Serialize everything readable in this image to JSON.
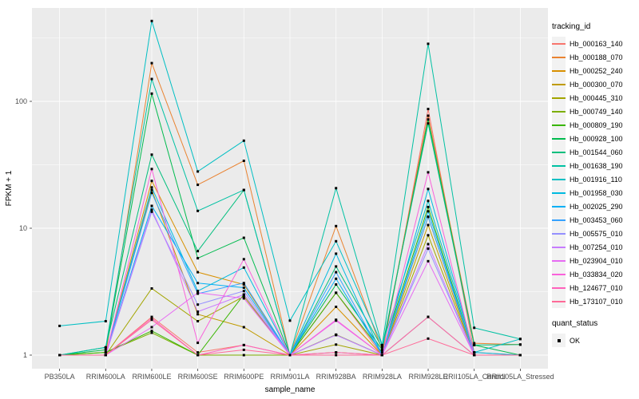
{
  "figure": {
    "panel_bg": "#EBEBEB",
    "grid_color": "#FFFFFF",
    "axis_text_color": "#4D4D4D",
    "tick_color": "#333333",
    "point_color": "#000000"
  },
  "chart_data": {
    "type": "line",
    "xlabel": "sample_name",
    "ylabel": "FPKM + 1",
    "y_scale": "log10",
    "y_ticks": [
      1,
      10,
      100
    ],
    "y_minor": [
      3.162,
      31.62,
      316.2
    ],
    "ylim": [
      0.78,
      550
    ],
    "grid": true,
    "legend_position": "right",
    "categories": [
      "PB350LA",
      "RRIM600LA",
      "RRIM600LE",
      "RRIM600SE",
      "RRIM600PE",
      "RRIM901LA",
      "RRIM928BA",
      "RRIM928LA",
      "RRIM928LE",
      "RRII105LA_Control",
      "RRII105LA_Stressed"
    ],
    "legend": {
      "title": "tracking_id"
    },
    "legend2": {
      "title": "quant_status",
      "items": [
        {
          "label": "OK",
          "marker": "black-square"
        }
      ]
    },
    "series": [
      {
        "name": "Hb_000163_140",
        "color": "#F8766D",
        "values": [
          1.0,
          1.0,
          2.0,
          1.05,
          1.2,
          1.0,
          3.1,
          1.0,
          87,
          1.05,
          1.0
        ]
      },
      {
        "name": "Hb_000188_070",
        "color": "#EA8331",
        "values": [
          1.0,
          1.0,
          200,
          22,
          34,
          1.0,
          10.4,
          1.1,
          77,
          1.24,
          1.21
        ]
      },
      {
        "name": "Hb_000252_240",
        "color": "#D89000",
        "values": [
          1.0,
          1.0,
          23.6,
          4.5,
          3.6,
          1.0,
          2.4,
          1.0,
          12.3,
          1.0,
          1.0
        ]
      },
      {
        "name": "Hb_000300_070",
        "color": "#C09B00",
        "values": [
          1.0,
          1.0,
          20,
          2.1,
          1.66,
          1.0,
          1.05,
          1.0,
          10.6,
          1.0,
          1.0
        ]
      },
      {
        "name": "Hb_000445_310",
        "color": "#A3A500",
        "values": [
          1.0,
          1.0,
          3.35,
          1.85,
          2.9,
          1.0,
          1.21,
          1.0,
          8.8,
          1.0,
          1.0
        ]
      },
      {
        "name": "Hb_000749_140",
        "color": "#7CAE00",
        "values": [
          1.0,
          1.05,
          1.5,
          1.0,
          1.0,
          1.0,
          1.45,
          1.0,
          2.0,
          1.0,
          1.0
        ]
      },
      {
        "name": "Hb_000809_190",
        "color": "#39B600",
        "values": [
          1.0,
          1.05,
          1.55,
          1.0,
          3.0,
          1.0,
          3.1,
          1.05,
          14.7,
          1.0,
          1.0
        ]
      },
      {
        "name": "Hb_000928_100",
        "color": "#00BB4E",
        "values": [
          1.0,
          1.1,
          115,
          5.8,
          8.4,
          1.0,
          3.6,
          1.1,
          72,
          1.2,
          1.0
        ]
      },
      {
        "name": "Hb_001544_060",
        "color": "#00BF7D",
        "values": [
          1.0,
          1.15,
          38,
          6.6,
          20,
          1.0,
          5.0,
          1.15,
          67,
          1.2,
          1.21
        ]
      },
      {
        "name": "Hb_001638_190",
        "color": "#00C1A3",
        "values": [
          1.0,
          1.15,
          150,
          13.7,
          20,
          1.0,
          20.7,
          1.2,
          284,
          1.64,
          1.34
        ]
      },
      {
        "name": "Hb_001916_110",
        "color": "#00BFC4",
        "values": [
          1.7,
          1.85,
          430,
          28,
          49,
          1.87,
          7.9,
          1.2,
          16.4,
          1.05,
          1.34
        ]
      },
      {
        "name": "Hb_001958_030",
        "color": "#00BAE0",
        "values": [
          1.0,
          1.0,
          21,
          3.2,
          4.9,
          1.0,
          6.3,
          1.0,
          20.4,
          1.05,
          1.0
        ]
      },
      {
        "name": "Hb_002025_290",
        "color": "#00B0F6",
        "values": [
          1.0,
          1.0,
          15,
          3.7,
          3.4,
          1.0,
          4.0,
          1.0,
          13.6,
          1.0,
          1.0
        ]
      },
      {
        "name": "Hb_003453_060",
        "color": "#35A2FF",
        "values": [
          1.0,
          1.0,
          19,
          3.05,
          3.7,
          1.0,
          4.5,
          1.0,
          12.3,
          1.0,
          1.0
        ]
      },
      {
        "name": "Hb_005575_010",
        "color": "#9590FF",
        "values": [
          1.0,
          1.0,
          13.5,
          2.5,
          3.2,
          1.0,
          1.44,
          1.0,
          6.9,
          1.0,
          1.0
        ]
      },
      {
        "name": "Hb_007254_010",
        "color": "#C77CFF",
        "values": [
          1.0,
          1.0,
          14,
          2.2,
          3.0,
          1.0,
          1.44,
          1.0,
          7.5,
          1.0,
          1.0
        ]
      },
      {
        "name": "Hb_023904_010",
        "color": "#E76BF3",
        "values": [
          1.0,
          1.0,
          1.66,
          3.1,
          2.8,
          1.0,
          1.87,
          1.0,
          5.5,
          1.0,
          1.0
        ]
      },
      {
        "name": "Hb_033834_020",
        "color": "#FA62DB",
        "values": [
          1.0,
          1.0,
          29.3,
          1.25,
          5.7,
          1.0,
          1.9,
          1.0,
          27.6,
          1.0,
          1.0
        ]
      },
      {
        "name": "Hb_124677_010",
        "color": "#FF62BC",
        "values": [
          1.0,
          1.0,
          1.95,
          1.0,
          1.2,
          1.0,
          1.05,
          1.0,
          2.0,
          1.0,
          1.0
        ]
      },
      {
        "name": "Hb_173107_010",
        "color": "#FF6A98",
        "values": [
          1.0,
          1.0,
          1.9,
          1.0,
          1.1,
          1.0,
          1.0,
          1.0,
          1.35,
          1.0,
          1.0
        ]
      }
    ]
  }
}
